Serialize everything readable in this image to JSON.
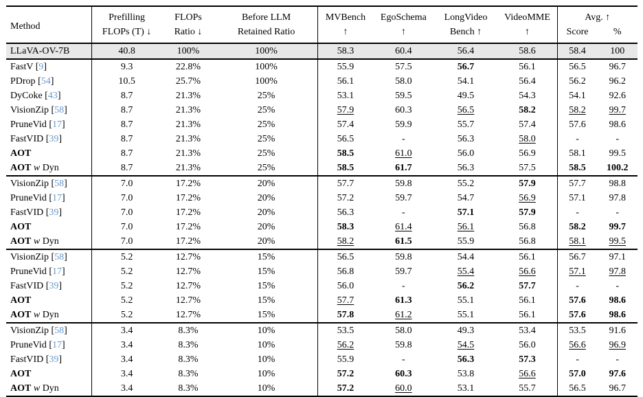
{
  "meta": {
    "citation_color": "#6699cc",
    "baseline_highlight_bg": "#e8e8e8"
  },
  "header": {
    "method_label": "Method",
    "columns": [
      {
        "id": "prefilling",
        "line1": "Prefilling",
        "line2": "FLOPs (T) ↓"
      },
      {
        "id": "flops_ratio",
        "line1": "FLOPs",
        "line2": "Ratio ↓"
      },
      {
        "id": "before_llm",
        "line1": "Before LLM",
        "line2": "Retained Ratio"
      },
      {
        "id": "mvbench",
        "line1": "MVBench",
        "line2": "↑"
      },
      {
        "id": "egoschema",
        "line1": "EgoSchema",
        "line2": "↑"
      },
      {
        "id": "longvideo",
        "line1": "LongVideo",
        "line2": "Bench ↑"
      },
      {
        "id": "videomme",
        "line1": "VideoMME",
        "line2": "↑"
      }
    ],
    "avg": {
      "label": "Avg. ↑",
      "sub": [
        "Score",
        "%"
      ]
    }
  },
  "baseline": {
    "method": [
      {
        "t": "LLaVA-OV-7B",
        "s": ""
      }
    ],
    "cells": [
      "40.8",
      "100%",
      "100%",
      "58.3",
      "60.4",
      "56.4",
      "58.6",
      "58.4",
      "100"
    ]
  },
  "groups": [
    {
      "rows": [
        {
          "method": [
            {
              "t": "FastV ",
              "s": ""
            },
            {
              "t": "9",
              "s": "cite"
            }
          ],
          "cells": [
            "9.3",
            "22.8%",
            "100%",
            "55.9",
            "57.5",
            "b:56.7",
            "56.1",
            "56.5",
            "96.7"
          ]
        },
        {
          "method": [
            {
              "t": "PDrop ",
              "s": ""
            },
            {
              "t": "54",
              "s": "cite"
            }
          ],
          "cells": [
            "10.5",
            "25.7%",
            "100%",
            "56.1",
            "58.0",
            "54.1",
            "56.4",
            "56.2",
            "96.2"
          ]
        },
        {
          "method": [
            {
              "t": "DyCoke ",
              "s": ""
            },
            {
              "t": "43",
              "s": "cite"
            }
          ],
          "cells": [
            "8.7",
            "21.3%",
            "25%",
            "53.1",
            "59.5",
            "49.5",
            "54.3",
            "54.1",
            "92.6"
          ]
        },
        {
          "method": [
            {
              "t": "VisionZip ",
              "s": ""
            },
            {
              "t": "58",
              "s": "cite"
            }
          ],
          "cells": [
            "8.7",
            "21.3%",
            "25%",
            "u:57.9",
            "60.3",
            "u:56.5",
            "b:58.2",
            "u:58.2",
            "u:99.7"
          ]
        },
        {
          "method": [
            {
              "t": "PruneVid ",
              "s": ""
            },
            {
              "t": "17",
              "s": "cite"
            }
          ],
          "cells": [
            "8.7",
            "21.3%",
            "25%",
            "57.4",
            "59.9",
            "55.7",
            "57.4",
            "57.6",
            "98.6"
          ]
        },
        {
          "method": [
            {
              "t": "FastVID ",
              "s": ""
            },
            {
              "t": "39",
              "s": "cite"
            }
          ],
          "cells": [
            "8.7",
            "21.3%",
            "25%",
            "56.5",
            "-",
            "56.3",
            "u:58.0",
            "-",
            "-"
          ]
        },
        {
          "method": [
            {
              "t": "AOT",
              "s": "b"
            }
          ],
          "cells": [
            "8.7",
            "21.3%",
            "25%",
            "b:58.5",
            "u:61.0",
            "56.0",
            "56.9",
            "58.1",
            "99.5"
          ]
        },
        {
          "method": [
            {
              "t": "AOT",
              "s": "b"
            },
            {
              "t": " w",
              "s": "i"
            },
            {
              "t": " Dyn",
              "s": ""
            }
          ],
          "cells": [
            "8.7",
            "21.3%",
            "25%",
            "b:58.5",
            "b:61.7",
            "56.3",
            "57.5",
            "b:58.5",
            "b:100.2"
          ]
        }
      ]
    },
    {
      "rows": [
        {
          "method": [
            {
              "t": "VisionZip ",
              "s": ""
            },
            {
              "t": "58",
              "s": "cite"
            }
          ],
          "cells": [
            "7.0",
            "17.2%",
            "20%",
            "57.7",
            "59.8",
            "55.2",
            "b:57.9",
            "57.7",
            "98.8"
          ]
        },
        {
          "method": [
            {
              "t": "PruneVid ",
              "s": ""
            },
            {
              "t": "17",
              "s": "cite"
            }
          ],
          "cells": [
            "7.0",
            "17.2%",
            "20%",
            "57.2",
            "59.7",
            "54.7",
            "u:56.9",
            "57.1",
            "97.8"
          ]
        },
        {
          "method": [
            {
              "t": "FastVID ",
              "s": ""
            },
            {
              "t": "39",
              "s": "cite"
            }
          ],
          "cells": [
            "7.0",
            "17.2%",
            "20%",
            "56.3",
            "-",
            "b:57.1",
            "b:57.9",
            "-",
            "-"
          ]
        },
        {
          "method": [
            {
              "t": "AOT",
              "s": "b"
            }
          ],
          "cells": [
            "7.0",
            "17.2%",
            "20%",
            "b:58.3",
            "u:61.4",
            "u:56.1",
            "56.8",
            "b:58.2",
            "b:99.7"
          ]
        },
        {
          "method": [
            {
              "t": "AOT",
              "s": "b"
            },
            {
              "t": " w",
              "s": "i"
            },
            {
              "t": " Dyn",
              "s": ""
            }
          ],
          "cells": [
            "7.0",
            "17.2%",
            "20%",
            "u:58.2",
            "b:61.5",
            "55.9",
            "56.8",
            "u:58.1",
            "u:99.5"
          ]
        }
      ]
    },
    {
      "rows": [
        {
          "method": [
            {
              "t": "VisionZip ",
              "s": ""
            },
            {
              "t": "58",
              "s": "cite"
            }
          ],
          "cells": [
            "5.2",
            "12.7%",
            "15%",
            "56.5",
            "59.8",
            "54.4",
            "56.1",
            "56.7",
            "97.1"
          ]
        },
        {
          "method": [
            {
              "t": "PruneVid ",
              "s": ""
            },
            {
              "t": "17",
              "s": "cite"
            }
          ],
          "cells": [
            "5.2",
            "12.7%",
            "15%",
            "56.8",
            "59.7",
            "u:55.4",
            "u:56.6",
            "u:57.1",
            "u:97.8"
          ]
        },
        {
          "method": [
            {
              "t": "FastVID ",
              "s": ""
            },
            {
              "t": "39",
              "s": "cite"
            }
          ],
          "cells": [
            "5.2",
            "12.7%",
            "15%",
            "56.0",
            "-",
            "b:56.2",
            "b:57.7",
            "-",
            "-"
          ]
        },
        {
          "method": [
            {
              "t": "AOT",
              "s": "b"
            }
          ],
          "cells": [
            "5.2",
            "12.7%",
            "15%",
            "u:57.7",
            "b:61.3",
            "55.1",
            "56.1",
            "b:57.6",
            "b:98.6"
          ]
        },
        {
          "method": [
            {
              "t": "AOT",
              "s": "b"
            },
            {
              "t": " w",
              "s": "i"
            },
            {
              "t": " Dyn",
              "s": ""
            }
          ],
          "cells": [
            "5.2",
            "12.7%",
            "15%",
            "b:57.8",
            "u:61.2",
            "55.1",
            "56.1",
            "b:57.6",
            "b:98.6"
          ]
        }
      ]
    },
    {
      "rows": [
        {
          "method": [
            {
              "t": "VisionZip ",
              "s": ""
            },
            {
              "t": "58",
              "s": "cite"
            }
          ],
          "cells": [
            "3.4",
            "8.3%",
            "10%",
            "53.5",
            "58.0",
            "49.3",
            "53.4",
            "53.5",
            "91.6"
          ]
        },
        {
          "method": [
            {
              "t": "PruneVid ",
              "s": ""
            },
            {
              "t": "17",
              "s": "cite"
            }
          ],
          "cells": [
            "3.4",
            "8.3%",
            "10%",
            "u:56.2",
            "59.8",
            "u:54.5",
            "56.0",
            "u:56.6",
            "u:96.9"
          ]
        },
        {
          "method": [
            {
              "t": "FastVID ",
              "s": ""
            },
            {
              "t": "39",
              "s": "cite"
            }
          ],
          "cells": [
            "3.4",
            "8.3%",
            "10%",
            "55.9",
            "-",
            "b:56.3",
            "b:57.3",
            "-",
            "-"
          ]
        },
        {
          "method": [
            {
              "t": "AOT",
              "s": "b"
            }
          ],
          "cells": [
            "3.4",
            "8.3%",
            "10%",
            "b:57.2",
            "b:60.3",
            "53.8",
            "u:56.6",
            "b:57.0",
            "b:97.6"
          ]
        },
        {
          "method": [
            {
              "t": "AOT",
              "s": "b"
            },
            {
              "t": " w",
              "s": "i"
            },
            {
              "t": " Dyn",
              "s": ""
            }
          ],
          "cells": [
            "3.4",
            "8.3%",
            "10%",
            "b:57.2",
            "u:60.0",
            "53.1",
            "55.7",
            "56.5",
            "96.7"
          ]
        }
      ]
    }
  ]
}
